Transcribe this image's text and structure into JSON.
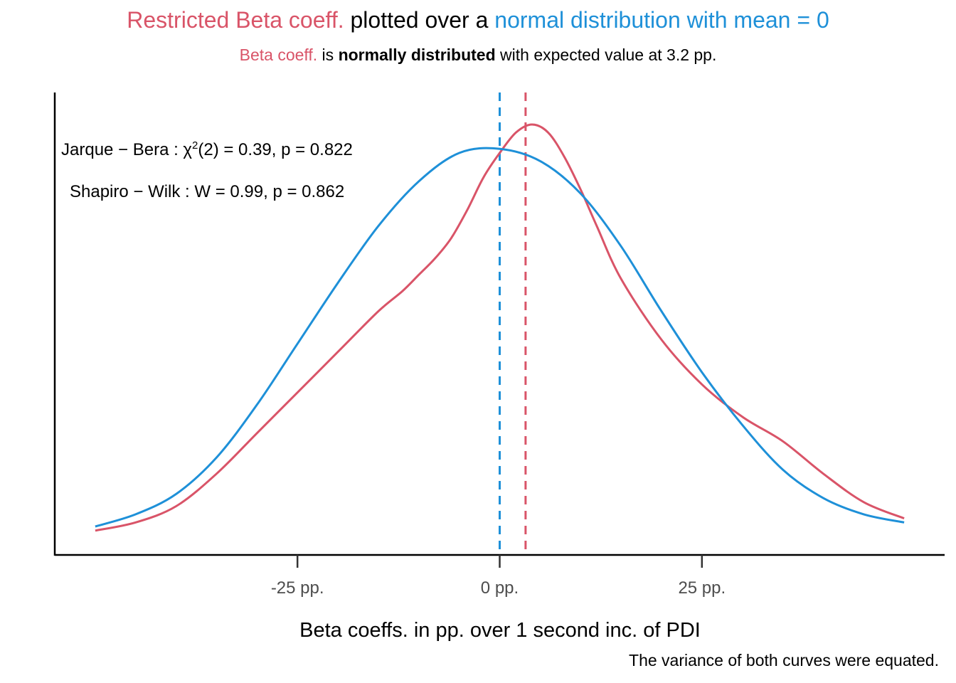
{
  "colors": {
    "restricted": "#d95468",
    "normal": "#1e90d8",
    "axis": "#000000",
    "text": "#000000"
  },
  "title": {
    "part1": "Restricted Beta coeff.",
    "part2": " plotted over a ",
    "part3": " normal distribution with mean = 0"
  },
  "subtitle": {
    "part1": "Beta coeff.",
    "part2": " is ",
    "part3": "normally distributed",
    "part4": " with expected value at 3.2 pp."
  },
  "annotations": {
    "jarque_bera": {
      "label": "Jarque − Bera : χ",
      "sup": "2",
      "rest": "(2) = 0.39,  p = 0.822"
    },
    "shapiro_wilk": "Shapiro − Wilk : W = 0.99,  p = 0.862"
  },
  "caption": "The variance of both curves were equated.",
  "chart_data": {
    "type": "line",
    "xlabel": "Beta coeffs. in pp. over 1 second inc. of PDI",
    "ylabel": "",
    "xlim": [
      -55,
      55
    ],
    "ylim": [
      0,
      1.06
    ],
    "x_ticks": [
      -25,
      0,
      25
    ],
    "x_tick_labels": [
      "-25 pp.",
      "0 pp.",
      "25 pp."
    ],
    "y_axis_labels_shown": false,
    "grid": false,
    "series": [
      {
        "name": "Restricted Beta coeff.",
        "color_key": "restricted",
        "x": [
          -50,
          -45,
          -40,
          -35,
          -30,
          -25,
          -20,
          -15,
          -12,
          -10,
          -8,
          -6,
          -4,
          -2,
          0,
          2,
          4,
          6,
          8,
          10,
          12,
          15,
          20,
          25,
          30,
          35,
          40,
          45,
          50
        ],
        "y": [
          0.06,
          0.08,
          0.12,
          0.2,
          0.3,
          0.4,
          0.5,
          0.6,
          0.65,
          0.69,
          0.73,
          0.78,
          0.85,
          0.93,
          0.99,
          1.04,
          1.06,
          1.04,
          0.98,
          0.9,
          0.81,
          0.68,
          0.53,
          0.42,
          0.34,
          0.28,
          0.2,
          0.13,
          0.09
        ]
      },
      {
        "name": "normal distribution with mean = 0",
        "color_key": "normal",
        "x": [
          -50,
          -45,
          -40,
          -35,
          -30,
          -25,
          -20,
          -15,
          -10,
          -5,
          0,
          5,
          10,
          15,
          20,
          25,
          30,
          35,
          40,
          45,
          50
        ],
        "y": [
          0.07,
          0.1,
          0.15,
          0.24,
          0.37,
          0.52,
          0.67,
          0.81,
          0.92,
          0.99,
          1.0,
          0.97,
          0.89,
          0.76,
          0.6,
          0.45,
          0.32,
          0.21,
          0.14,
          0.1,
          0.08
        ]
      }
    ],
    "vlines": [
      {
        "x": 0,
        "color_key": "normal",
        "style": "dashed"
      },
      {
        "x": 3.2,
        "color_key": "restricted",
        "style": "dashed"
      }
    ]
  }
}
